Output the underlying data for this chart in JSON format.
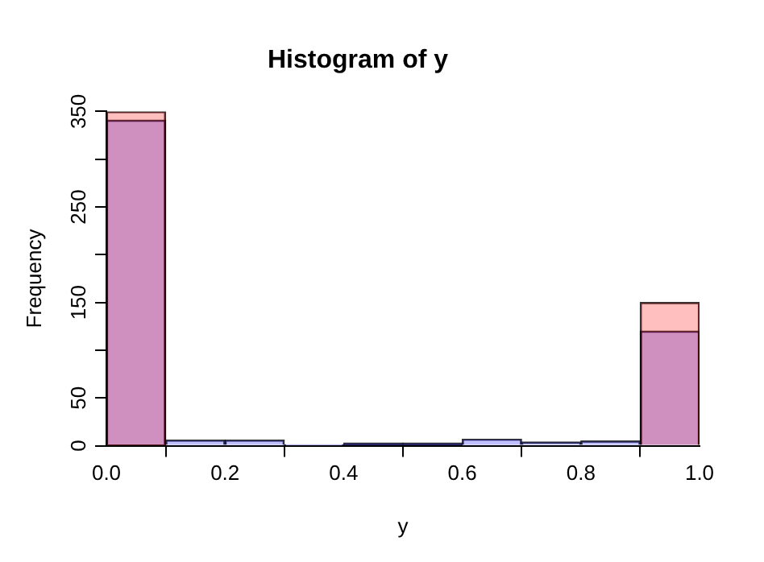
{
  "chart_data": {
    "type": "histogram",
    "title": "Histogram of y",
    "xlabel": "y",
    "ylabel": "Frequency",
    "bins": [
      0,
      0.1,
      0.2,
      0.3,
      0.4,
      0.5,
      0.6,
      0.7,
      0.8,
      0.9,
      1.0
    ],
    "series": [
      {
        "color": "#ffbfbf",
        "values": [
          350,
          0,
          0,
          0,
          0,
          0,
          0,
          0,
          0,
          150
        ]
      },
      {
        "color": "#bfbfff",
        "values": [
          341,
          6,
          6,
          1,
          3,
          3,
          7,
          4,
          5,
          120
        ]
      }
    ],
    "xlim": [
      0,
      1
    ],
    "xticks": [
      {
        "value": 0,
        "label": "0.0"
      },
      0.2,
      0.4,
      0.6,
      0.8,
      {
        "value": 1,
        "label": "1.0"
      }
    ],
    "ylim": [
      0,
      350
    ],
    "yticks": [
      0,
      50,
      {
        "value": 100,
        "label": null
      },
      150,
      {
        "value": 200,
        "label": null
      },
      250,
      {
        "value": 300,
        "label": null
      },
      350
    ],
    "grid": false,
    "legend": false
  }
}
